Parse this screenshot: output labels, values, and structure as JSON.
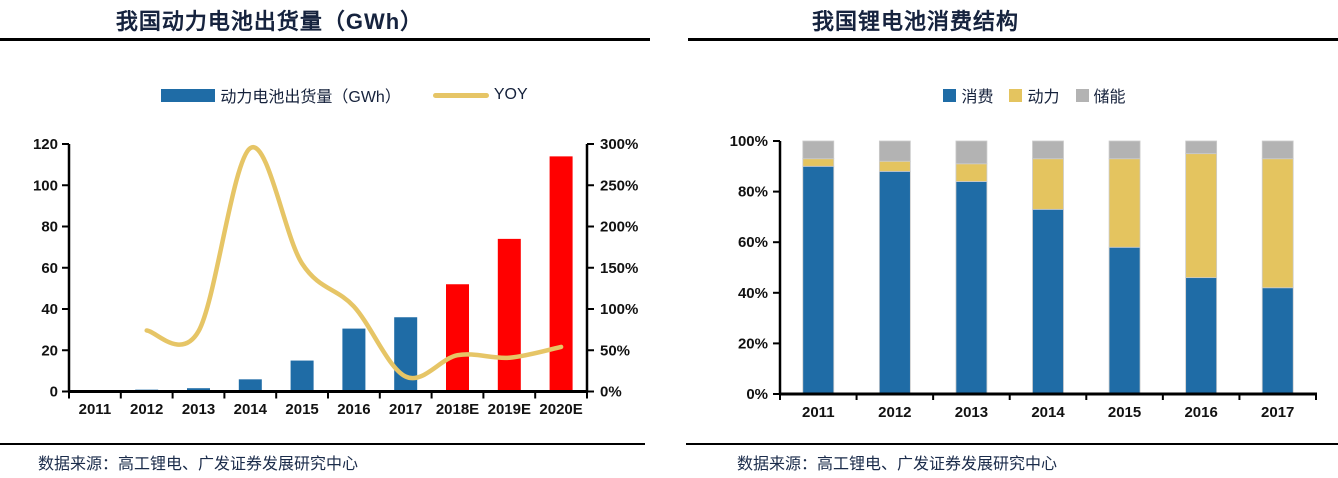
{
  "colors": {
    "bar_blue": "#1F6CA6",
    "bar_red": "#FF0000",
    "line_yellow": "#E6C566",
    "stack_yellow": "#E4C45F",
    "stack_gray": "#B3B3B3",
    "title_text": "#16233E",
    "source_text": "#1A2B4A",
    "axis_black": "#000000"
  },
  "panels": [
    {
      "title": "我国动力电池出货量（GWh）",
      "source": "数据来源：高工锂电、广发证券发展研究中心"
    },
    {
      "title": "我国锂电池消费结构",
      "source": "数据来源：高工锂电、广发证券发展研究中心"
    }
  ],
  "chart_data": [
    {
      "type": "bar",
      "title": "我国动力电池出货量（GWh）",
      "categories": [
        "2011",
        "2012",
        "2013",
        "2014",
        "2015",
        "2016",
        "2017",
        "2018E",
        "2019E",
        "2020E"
      ],
      "series": [
        {
          "name": "动力电池出货量（GWh）",
          "type": "bar",
          "axis": "left",
          "values": [
            0.3,
            0.9,
            1.6,
            5.9,
            15,
            30.5,
            36,
            52,
            74,
            114
          ],
          "colors": [
            "#1F6CA6",
            "#1F6CA6",
            "#1F6CA6",
            "#1F6CA6",
            "#1F6CA6",
            "#1F6CA6",
            "#1F6CA6",
            "#FF0000",
            "#FF0000",
            "#FF0000"
          ]
        },
        {
          "name": "YOY",
          "type": "line",
          "axis": "right",
          "values": [
            null,
            74,
            73,
            295,
            155,
            103,
            18,
            44,
            41,
            54
          ],
          "color": "#E6C566"
        }
      ],
      "left_axis": {
        "min": 0,
        "max": 120,
        "step": 20,
        "ticks": [
          "0",
          "20",
          "40",
          "60",
          "80",
          "100",
          "120"
        ]
      },
      "right_axis": {
        "min": 0,
        "max": 300,
        "step": 50,
        "ticks": [
          "0%",
          "50%",
          "100%",
          "150%",
          "200%",
          "250%",
          "300%"
        ]
      },
      "legend_position": "top",
      "grid": false
    },
    {
      "type": "bar",
      "subtype": "stacked-100",
      "title": "我国锂电池消费结构",
      "categories": [
        "2011",
        "2012",
        "2013",
        "2014",
        "2015",
        "2016",
        "2017"
      ],
      "series": [
        {
          "name": "消费",
          "color": "#1F6CA6",
          "values": [
            90,
            88,
            84,
            73,
            58,
            46,
            42
          ]
        },
        {
          "name": "动力",
          "color": "#E4C45F",
          "values": [
            3,
            4,
            7,
            20,
            35,
            49,
            51
          ]
        },
        {
          "name": "储能",
          "color": "#B3B3B3",
          "values": [
            7,
            8,
            9,
            7,
            7,
            5,
            7
          ]
        }
      ],
      "y_axis": {
        "min": 0,
        "max": 100,
        "step": 20,
        "ticks": [
          "0%",
          "20%",
          "40%",
          "60%",
          "80%",
          "100%"
        ]
      },
      "legend_position": "top",
      "grid": false
    }
  ]
}
